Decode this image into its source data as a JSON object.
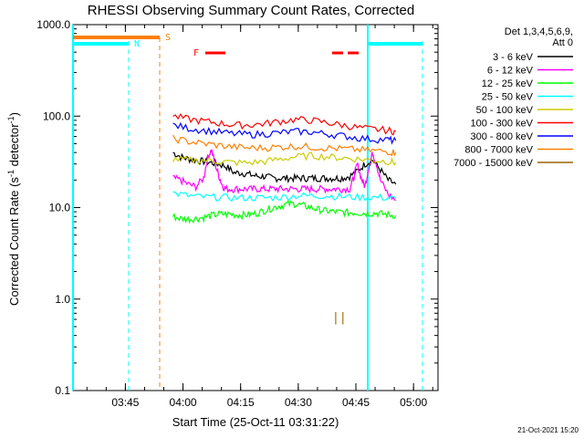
{
  "chart_data": {
    "type": "line",
    "title": "RHESSI Observing Summary Count Rates, Corrected",
    "xlabel": "Start Time (25-Oct-11 03:31:22)",
    "ylabel_main": "Corrected Count Rate (s",
    "ylabel_sup1": "-1",
    "ylabel_mid": " detector",
    "ylabel_sup2": "-1",
    "ylabel_end": ")",
    "yscale": "log",
    "ylim": [
      0.1,
      1000
    ],
    "yticks": [
      {
        "v": 0.1,
        "label": "0.1"
      },
      {
        "v": 1,
        "label": "1.0"
      },
      {
        "v": 10,
        "label": "10.0"
      },
      {
        "v": 100,
        "label": "100.0"
      },
      {
        "v": 1000,
        "label": "1000.0"
      }
    ],
    "xlim_min": [
      0,
      95
    ],
    "xticks": [
      {
        "m": 13.63,
        "label": "03:45"
      },
      {
        "m": 28.63,
        "label": "04:00"
      },
      {
        "m": 43.63,
        "label": "04:15"
      },
      {
        "m": 58.63,
        "label": "04:30"
      },
      {
        "m": 73.63,
        "label": "04:45"
      },
      {
        "m": 88.63,
        "label": "05:00"
      }
    ],
    "legend_header": [
      "Det 1,3,4,5,6,9,",
      "Att 0"
    ],
    "series": [
      {
        "name": "3 - 6 keV",
        "color": "#000000",
        "x": [
          26,
          28,
          30,
          32,
          34,
          36,
          38,
          40,
          42,
          44,
          46,
          48,
          50,
          52,
          54,
          56,
          58,
          60,
          62,
          64,
          66,
          68,
          70,
          72,
          74,
          76,
          78,
          80,
          82,
          84
        ],
        "y": [
          40,
          36,
          34,
          33,
          32,
          31,
          30,
          28,
          24,
          24,
          23,
          22,
          22,
          21,
          21,
          21,
          21,
          21,
          21,
          21,
          21,
          21,
          21,
          22,
          25,
          30,
          33,
          26,
          20,
          18
        ]
      },
      {
        "name": "6 - 12 keV",
        "color": "#ff00ff",
        "x": [
          26,
          28,
          30,
          32,
          34,
          35,
          36,
          37,
          38,
          39,
          40,
          42,
          44,
          46,
          48,
          50,
          52,
          54,
          56,
          58,
          60,
          62,
          64,
          66,
          68,
          70,
          72,
          73,
          74,
          75,
          76,
          77,
          78,
          79,
          80,
          82,
          84
        ],
        "y": [
          21,
          20,
          18,
          17,
          21,
          35,
          43,
          30,
          22,
          17,
          16,
          16,
          16,
          16,
          16,
          16,
          16,
          16,
          16,
          16,
          16,
          16,
          16,
          16,
          16,
          16,
          16,
          21,
          30,
          21,
          17,
          28,
          40,
          30,
          20,
          14,
          12
        ]
      },
      {
        "name": "12 - 25 keV",
        "color": "#00ff00",
        "x": [
          26,
          28,
          30,
          32,
          34,
          36,
          38,
          40,
          42,
          44,
          46,
          48,
          50,
          52,
          54,
          56,
          58,
          60,
          62,
          64,
          66,
          68,
          70,
          72,
          74,
          76,
          78,
          80,
          82,
          84
        ],
        "y": [
          8,
          7.6,
          7.5,
          7.6,
          7.8,
          8.2,
          8.5,
          8.5,
          8.4,
          8.3,
          8.4,
          8.7,
          9.4,
          10,
          10.5,
          11,
          11,
          10.5,
          10,
          9.5,
          9.2,
          9,
          8.9,
          8.8,
          8.8,
          8.7,
          8.7,
          8.6,
          8.4,
          8.2
        ]
      },
      {
        "name": "25 - 50 keV",
        "color": "#00ffff",
        "x": [
          26,
          30,
          34,
          38,
          42,
          46,
          50,
          54,
          58,
          62,
          66,
          70,
          74,
          78,
          82,
          84
        ],
        "y": [
          14.5,
          13.5,
          13,
          13,
          12.8,
          12.8,
          12.8,
          13,
          13.5,
          13.5,
          13.5,
          13.2,
          13,
          13,
          12.8,
          12.5
        ]
      },
      {
        "name": "50 - 100 keV",
        "color": "#cccc00",
        "x": [
          26,
          30,
          34,
          38,
          42,
          46,
          50,
          54,
          58,
          62,
          66,
          70,
          74,
          78,
          82,
          84
        ],
        "y": [
          34,
          33,
          33,
          32,
          31,
          31,
          32,
          34,
          36,
          37,
          36,
          35,
          34,
          33,
          32,
          31
        ]
      },
      {
        "name": "100 - 300 keV",
        "color": "#ff0000",
        "x": [
          26,
          30,
          34,
          38,
          42,
          46,
          50,
          54,
          58,
          62,
          66,
          70,
          74,
          78,
          82,
          84
        ],
        "y": [
          100,
          93,
          88,
          84,
          80,
          80,
          83,
          88,
          92,
          90,
          85,
          80,
          75,
          72,
          70,
          68
        ]
      },
      {
        "name": "300 - 800 keV",
        "color": "#0000ff",
        "x": [
          26,
          30,
          34,
          38,
          42,
          46,
          50,
          54,
          58,
          62,
          66,
          70,
          74,
          78,
          82,
          84
        ],
        "y": [
          80,
          74,
          70,
          67,
          64,
          63,
          64,
          66,
          68,
          67,
          64,
          61,
          58,
          56,
          55,
          54
        ]
      },
      {
        "name": "800 - 7000 keV",
        "color": "#ff8000",
        "x": [
          26,
          30,
          34,
          38,
          42,
          46,
          50,
          54,
          58,
          62,
          66,
          70,
          74,
          78,
          82,
          84
        ],
        "y": [
          57,
          53,
          50,
          48,
          46,
          45,
          45,
          46,
          47,
          46,
          45,
          44,
          43,
          42,
          41,
          40
        ]
      },
      {
        "name": "7000 - 15000 keV",
        "color": "#996600",
        "x": [],
        "y": []
      }
    ],
    "flags": [
      {
        "label": "N",
        "color": "#00ffff"
      },
      {
        "label": "S",
        "color": "#ff8000"
      },
      {
        "label": "F",
        "color": "#ff0000"
      }
    ],
    "annotations": {
      "atten_mark": "||",
      "timestamp": "21-Oct-2021 15:20"
    }
  }
}
